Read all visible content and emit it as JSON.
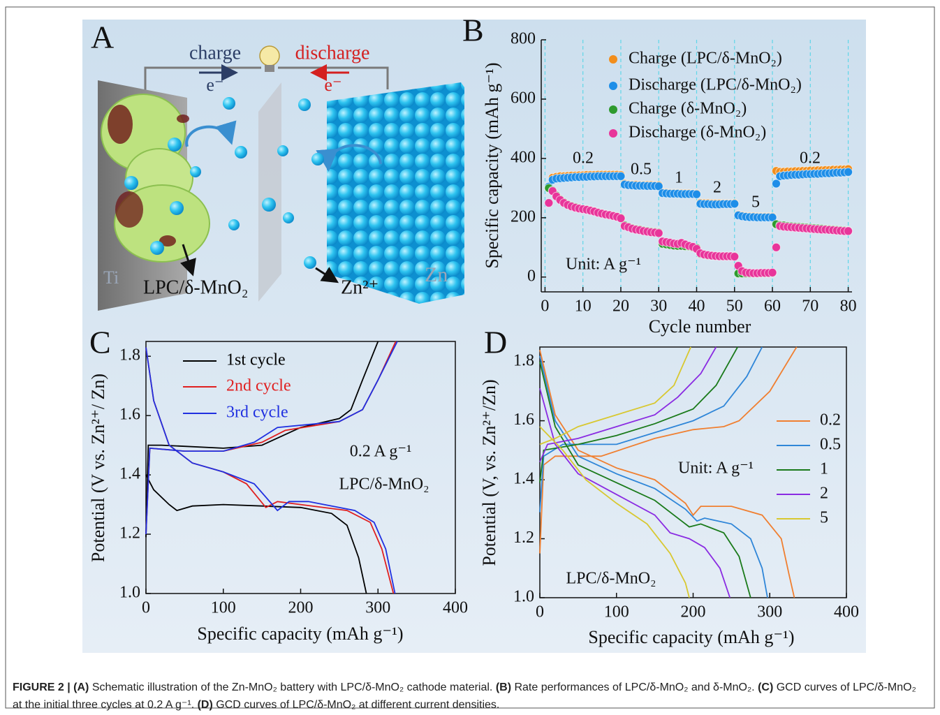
{
  "schematic": {
    "label": "A",
    "charge": "charge",
    "discharge": "discharge",
    "electron_left": "e⁻",
    "electron_right": "e⁻",
    "cathode": "LPC/δ-MnO₂",
    "ti": "Ti",
    "zn": "Zn",
    "ion": "Zn²⁺"
  },
  "chart_data": [
    {
      "type": "scatter",
      "panel_label": "B",
      "xlabel": "Cycle number",
      "ylabel": "Specific capacity (mAh g⁻¹)",
      "xlim": [
        -1,
        81
      ],
      "ylim": [
        -50,
        800
      ],
      "xticks": [
        0,
        10,
        20,
        30,
        40,
        50,
        60,
        70,
        80
      ],
      "yticks": [
        0,
        200,
        400,
        600,
        800
      ],
      "xgrid": true,
      "frame": false,
      "x": [
        1,
        2,
        3,
        4,
        5,
        6,
        7,
        8,
        9,
        10,
        11,
        12,
        13,
        14,
        15,
        16,
        17,
        18,
        19,
        20,
        21,
        22,
        23,
        24,
        25,
        26,
        27,
        28,
        29,
        30,
        31,
        32,
        33,
        34,
        35,
        36,
        37,
        38,
        39,
        40,
        41,
        42,
        43,
        44,
        45,
        46,
        47,
        48,
        49,
        50,
        51,
        52,
        53,
        54,
        55,
        56,
        57,
        58,
        59,
        60,
        61,
        62,
        63,
        64,
        65,
        66,
        67,
        68,
        69,
        70,
        71,
        72,
        73,
        74,
        75,
        76,
        77,
        78,
        79,
        80
      ],
      "series": [
        {
          "name": "Charge (LPC/δ-MnO₂)",
          "color": "#f28e1c",
          "values": [
            300,
            335,
            338,
            340,
            340,
            341,
            342,
            342,
            343,
            343,
            344,
            344,
            344,
            345,
            345,
            345,
            345,
            345,
            345,
            344,
            315,
            312,
            311,
            311,
            310,
            310,
            310,
            310,
            309,
            309,
            285,
            284,
            283,
            283,
            283,
            282,
            282,
            282,
            281,
            281,
            250,
            249,
            249,
            248,
            248,
            248,
            248,
            248,
            248,
            249,
            210,
            207,
            205,
            204,
            204,
            203,
            203,
            203,
            203,
            203,
            358,
            355,
            355,
            356,
            356,
            357,
            357,
            358,
            358,
            359,
            359,
            360,
            360,
            361,
            361,
            362,
            362,
            363,
            363,
            364
          ]
        },
        {
          "name": "Discharge (LPC/δ-MnO₂)",
          "color": "#1e8ee8",
          "values": [
            305,
            328,
            332,
            333,
            334,
            335,
            336,
            337,
            337,
            338,
            338,
            339,
            339,
            340,
            340,
            340,
            340,
            340,
            340,
            340,
            312,
            310,
            309,
            308,
            308,
            308,
            307,
            307,
            307,
            306,
            283,
            282,
            281,
            281,
            281,
            280,
            280,
            280,
            280,
            279,
            247,
            246,
            246,
            245,
            245,
            245,
            246,
            246,
            246,
            247,
            208,
            205,
            203,
            202,
            202,
            201,
            201,
            201,
            201,
            201,
            315,
            340,
            342,
            343,
            344,
            345,
            345,
            346,
            347,
            347,
            348,
            348,
            349,
            350,
            350,
            351,
            352,
            352,
            353,
            354
          ]
        },
        {
          "name": "Charge (δ-MnO₂)",
          "color": "#2e9a2e",
          "values": [
            300,
            292,
            275,
            262,
            252,
            245,
            240,
            236,
            232,
            230,
            228,
            225,
            222,
            218,
            215,
            212,
            210,
            207,
            204,
            200,
            175,
            170,
            165,
            162,
            160,
            157,
            155,
            153,
            152,
            150,
            112,
            110,
            108,
            106,
            105,
            105,
            104,
            103,
            100,
            98,
            78,
            75,
            73,
            72,
            71,
            70,
            70,
            70,
            70,
            70,
            12,
            12,
            12,
            12,
            12,
            12,
            13,
            13,
            13,
            14,
            178,
            175,
            174,
            172,
            171,
            170,
            169,
            168,
            167,
            166,
            165,
            164,
            163,
            162,
            161,
            160,
            159,
            158,
            157,
            156
          ]
        },
        {
          "name": "Discharge (δ-MnO₂)",
          "color": "#e8359a",
          "values": [
            250,
            290,
            272,
            260,
            250,
            243,
            238,
            234,
            231,
            229,
            227,
            224,
            221,
            217,
            214,
            211,
            209,
            206,
            203,
            198,
            172,
            168,
            163,
            160,
            158,
            155,
            153,
            151,
            150,
            148,
            120,
            118,
            116,
            113,
            112,
            115,
            110,
            105,
            102,
            95,
            80,
            76,
            74,
            72,
            71,
            70,
            70,
            70,
            70,
            69,
            38,
            20,
            15,
            14,
            13,
            13,
            14,
            14,
            14,
            15,
            100,
            172,
            170,
            169,
            168,
            167,
            166,
            165,
            164,
            163,
            162,
            161,
            160,
            160,
            159,
            158,
            157,
            156,
            155,
            155
          ]
        }
      ],
      "annotations": [
        "0.2",
        "0.5",
        "1",
        "2",
        "5",
        "0.2",
        "Unit: A g⁻¹"
      ]
    },
    {
      "type": "line",
      "panel_label": "C",
      "xlabel": "Specific capacity (mAh g⁻¹)",
      "ylabel": "Potential (V vs. Zn²⁺/ Zn)",
      "xlim": [
        0,
        400
      ],
      "ylim": [
        1,
        1.85
      ],
      "xticks": [
        0,
        100,
        200,
        300,
        400
      ],
      "yticks": [
        {
          "value": 1,
          "label": "1.0"
        },
        1.2,
        1.4,
        1.6,
        1.8
      ],
      "xgrid": false,
      "frame": true,
      "series": [
        {
          "name": "1st cycle",
          "color": "#000000",
          "x": [
            0,
            3,
            20,
            100,
            150,
            200,
            250,
            265,
            280,
            300,
            null,
            0,
            10,
            30,
            40,
            60,
            100,
            200,
            240,
            260,
            275,
            285
          ],
          "values": [
            1.19,
            1.5,
            1.5,
            1.49,
            1.5,
            1.56,
            1.59,
            1.62,
            1.72,
            1.85,
            null,
            1.4,
            1.35,
            1.3,
            1.28,
            1.295,
            1.3,
            1.29,
            1.27,
            1.23,
            1.12,
            1
          ]
        },
        {
          "name": "2nd cycle",
          "color": "#e02020",
          "x": [
            0,
            5,
            50,
            100,
            150,
            180,
            250,
            280,
            300,
            323,
            null,
            0,
            10,
            30,
            60,
            100,
            130,
            155,
            170,
            200,
            260,
            290,
            305,
            320
          ],
          "values": [
            1.2,
            1.49,
            1.48,
            1.48,
            1.51,
            1.55,
            1.58,
            1.62,
            1.72,
            1.85,
            null,
            1.83,
            1.65,
            1.5,
            1.44,
            1.41,
            1.37,
            1.29,
            1.31,
            1.3,
            1.28,
            1.24,
            1.15,
            1
          ]
        },
        {
          "name": "3rd cycle",
          "color": "#2030e0",
          "x": [
            0,
            5,
            50,
            100,
            140,
            170,
            250,
            280,
            300,
            325,
            null,
            0,
            10,
            30,
            60,
            100,
            140,
            170,
            185,
            210,
            270,
            295,
            310,
            322
          ],
          "values": [
            1.2,
            1.49,
            1.48,
            1.48,
            1.51,
            1.56,
            1.58,
            1.62,
            1.72,
            1.85,
            null,
            1.83,
            1.65,
            1.5,
            1.44,
            1.41,
            1.37,
            1.28,
            1.31,
            1.31,
            1.28,
            1.24,
            1.15,
            1
          ]
        }
      ],
      "annotations": [
        "0.2 A g⁻¹",
        "LPC/δ-MnO₂"
      ]
    },
    {
      "type": "line",
      "panel_label": "D",
      "xlabel": "Specific capacity (mAh g⁻¹)",
      "ylabel": "Potential (V, vs. Zn²⁺/Zn)",
      "xlim": [
        0,
        400
      ],
      "ylim": [
        1,
        1.85
      ],
      "xticks": [
        0,
        100,
        200,
        300,
        400
      ],
      "yticks": [
        {
          "value": 1,
          "label": "1.0"
        },
        1.2,
        1.4,
        1.6,
        1.8
      ],
      "xgrid": false,
      "frame": true,
      "series": [
        {
          "name": "0.2",
          "color": "#f07f30",
          "x": [
            0,
            5,
            20,
            80,
            150,
            200,
            240,
            260,
            300,
            335,
            null,
            0,
            20,
            50,
            100,
            150,
            190,
            200,
            210,
            250,
            290,
            315,
            325,
            332
          ],
          "values": [
            1.15,
            1.45,
            1.48,
            1.48,
            1.54,
            1.57,
            1.58,
            1.6,
            1.7,
            1.85,
            null,
            1.84,
            1.62,
            1.5,
            1.44,
            1.4,
            1.32,
            1.28,
            1.31,
            1.31,
            1.28,
            1.2,
            1.08,
            1
          ]
        },
        {
          "name": "0.5",
          "color": "#2f86d8",
          "x": [
            0,
            5,
            30,
            100,
            150,
            200,
            240,
            270,
            290,
            null,
            0,
            20,
            50,
            100,
            150,
            190,
            205,
            215,
            250,
            275,
            290,
            297
          ],
          "values": [
            1.29,
            1.48,
            1.52,
            1.52,
            1.56,
            1.6,
            1.65,
            1.75,
            1.85,
            null,
            1.82,
            1.6,
            1.48,
            1.42,
            1.37,
            1.3,
            1.26,
            1.27,
            1.25,
            1.2,
            1.1,
            1
          ]
        },
        {
          "name": "1",
          "color": "#1a7a1a",
          "x": [
            0,
            5,
            50,
            100,
            150,
            200,
            230,
            258,
            null,
            0,
            20,
            50,
            100,
            150,
            185,
            195,
            210,
            240,
            260,
            275
          ],
          "values": [
            1.39,
            1.5,
            1.52,
            1.55,
            1.59,
            1.64,
            1.72,
            1.85,
            null,
            1.8,
            1.58,
            1.45,
            1.39,
            1.33,
            1.26,
            1.24,
            1.25,
            1.22,
            1.14,
            1
          ]
        },
        {
          "name": "2",
          "color": "#8a2be2",
          "x": [
            0,
            10,
            50,
            100,
            150,
            180,
            210,
            230,
            null,
            0,
            20,
            50,
            100,
            150,
            170,
            195,
            215,
            235,
            248
          ],
          "values": [
            1.46,
            1.52,
            1.54,
            1.58,
            1.62,
            1.68,
            1.76,
            1.85,
            null,
            1.71,
            1.52,
            1.42,
            1.35,
            1.28,
            1.22,
            1.2,
            1.17,
            1.1,
            1
          ]
        },
        {
          "name": "5",
          "color": "#d8c830",
          "x": [
            0,
            20,
            50,
            100,
            150,
            175,
            197,
            null,
            0,
            30,
            60,
            100,
            140,
            170,
            190,
            195
          ],
          "values": [
            1.52,
            1.54,
            1.58,
            1.62,
            1.66,
            1.72,
            1.85,
            null,
            1.58,
            1.5,
            1.4,
            1.32,
            1.25,
            1.15,
            1.05,
            1
          ]
        }
      ],
      "annotations": [
        "Unit: A g⁻¹",
        "LPC/δ-MnO₂"
      ]
    }
  ],
  "caption": [
    "FIGURE 2 | (A)",
    " Schematic illustration of the Zn-MnO₂ battery with LPC/δ-MnO₂ cathode material. ",
    "(B)",
    " Rate performances of LPC/δ-MnO₂ and δ-MnO₂. ",
    "(C)",
    " GCD curves of LPC/δ-MnO₂ at the initial three cycles at 0.2 A g⁻¹. ",
    "(D)",
    " GCD curves of LPC/δ-MnO₂ at different current densities."
  ]
}
